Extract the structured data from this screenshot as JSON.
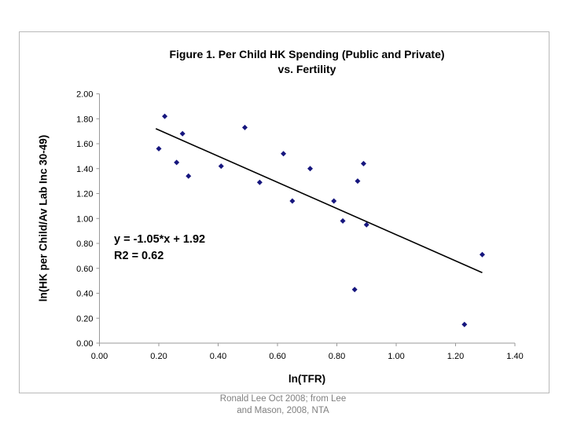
{
  "slide": {
    "caption_line1": "Ronald Lee Oct 2008; from Lee",
    "caption_line2": "and Mason, 2008, NTA",
    "caption_color": "#7f7f7f"
  },
  "chart_data": {
    "type": "scatter",
    "title_line1": "Figure 1.  Per Child HK Spending (Public and Private)",
    "title_line2": "vs. Fertility",
    "xlabel": "ln(TFR)",
    "ylabel": "ln(HK per Child/Av Lab Inc 30-49)",
    "xlim": [
      0,
      1.4
    ],
    "ylim": [
      0,
      2.0
    ],
    "x_ticks": [
      "0.00",
      "0.20",
      "0.40",
      "0.60",
      "0.80",
      "1.00",
      "1.20",
      "1.40"
    ],
    "y_ticks": [
      "0.00",
      "0.20",
      "0.40",
      "0.60",
      "0.80",
      "1.00",
      "1.20",
      "1.40",
      "1.60",
      "1.80",
      "2.00"
    ],
    "grid": false,
    "legend": "none",
    "axis_color": "#999999",
    "marker": {
      "shape": "diamond",
      "color": "#16167e",
      "size": 7
    },
    "points": [
      [
        0.22,
        1.82
      ],
      [
        0.2,
        1.56
      ],
      [
        0.28,
        1.68
      ],
      [
        0.26,
        1.45
      ],
      [
        0.3,
        1.34
      ],
      [
        0.41,
        1.42
      ],
      [
        0.49,
        1.73
      ],
      [
        0.54,
        1.29
      ],
      [
        0.62,
        1.52
      ],
      [
        0.65,
        1.14
      ],
      [
        0.71,
        1.4
      ],
      [
        0.79,
        1.14
      ],
      [
        0.82,
        0.98
      ],
      [
        0.87,
        1.3
      ],
      [
        0.89,
        1.44
      ],
      [
        0.9,
        0.95
      ],
      [
        0.86,
        0.43
      ],
      [
        1.23,
        0.15
      ],
      [
        1.29,
        0.71
      ]
    ],
    "trendline": {
      "slope": -1.05,
      "intercept": 1.92,
      "x_start": 0.19,
      "x_end": 1.29,
      "color": "#000000",
      "width": 1.6
    },
    "annotation": {
      "line1": "y = -1.05*x + 1.92",
      "line2": "R2 = 0.62"
    }
  }
}
